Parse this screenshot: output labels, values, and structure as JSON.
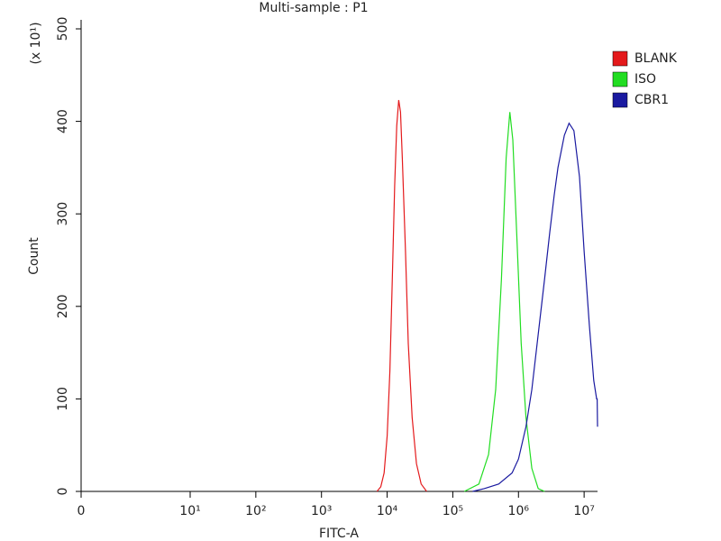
{
  "chart_data": {
    "type": "line",
    "title": "Multi-sample : P1",
    "xlabel": "FITC-A",
    "ylabel": "Count",
    "ylabel_multiplier": "(x 10¹)",
    "xscale": "biexponential",
    "xlim": [
      0,
      16000000
    ],
    "xticks": [
      0,
      {
        "value": 10,
        "label": "10¹"
      },
      {
        "value": 100,
        "label": "10²"
      },
      {
        "value": 1000,
        "label": "10³"
      },
      {
        "value": 10000,
        "label": "10⁴"
      },
      {
        "value": 100000,
        "label": "10⁵"
      },
      {
        "value": 1000000,
        "label": "10⁶"
      },
      {
        "value": 10000000,
        "label": "10⁷"
      }
    ],
    "ylim": [
      0,
      500
    ],
    "yticks": [
      0,
      100,
      200,
      300,
      400,
      500
    ],
    "legend": "right",
    "series": [
      {
        "name": "BLANK",
        "color": "#e41a1c",
        "x": [
          7000,
          8000,
          9000,
          10000,
          11000,
          12000,
          13000,
          14000,
          15000,
          16000,
          17000,
          19000,
          21000,
          24000,
          28000,
          33000,
          40000
        ],
        "values": [
          0,
          5,
          20,
          60,
          130,
          230,
          330,
          395,
          423,
          410,
          360,
          260,
          160,
          80,
          30,
          8,
          0
        ]
      },
      {
        "name": "ISO",
        "color": "#22dd22",
        "x": [
          150000,
          250000,
          350000,
          450000,
          550000,
          650000,
          740000,
          820000,
          950000,
          1100000,
          1300000,
          1600000,
          2000000,
          2500000
        ],
        "values": [
          0,
          8,
          40,
          110,
          230,
          360,
          410,
          380,
          270,
          160,
          80,
          25,
          3,
          0
        ]
      },
      {
        "name": "CBR1",
        "color": "#1a1aa0",
        "x": [
          200000,
          300000,
          500000,
          800000,
          1000000,
          1300000,
          1600000,
          2000000,
          2500000,
          3000000,
          3500000,
          4000000,
          5000000,
          5900000,
          7000000,
          8500000,
          10000000,
          12000000,
          14000000,
          15500000,
          15800000,
          16000000
        ],
        "values": [
          0,
          3,
          8,
          20,
          35,
          70,
          110,
          170,
          230,
          280,
          320,
          350,
          385,
          398,
          390,
          340,
          260,
          180,
          120,
          100,
          100,
          70
        ]
      }
    ]
  }
}
